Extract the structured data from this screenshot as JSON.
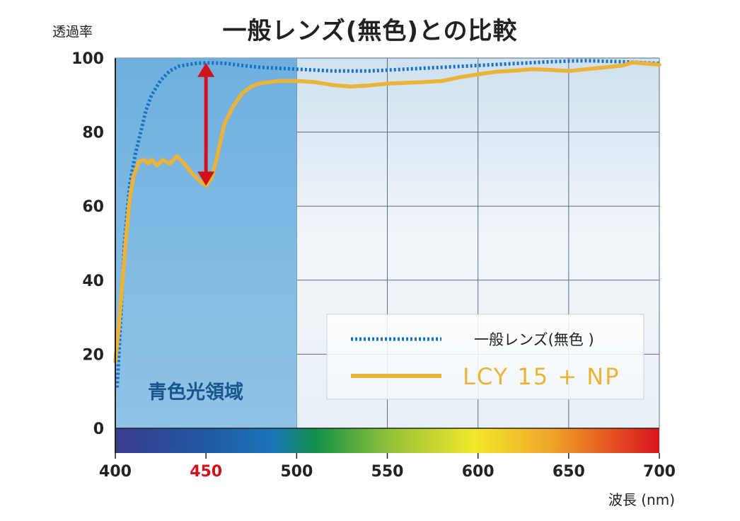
{
  "chart_data": {
    "type": "line",
    "title": "一般レンズ(無色)との比較",
    "ylabel": "透過率",
    "xlabel": "波長 (nm)",
    "xlim": [
      400,
      700
    ],
    "ylim": [
      0,
      100
    ],
    "x_ticks": [
      "400",
      "450",
      "500",
      "550",
      "600",
      "650",
      "700"
    ],
    "y_ticks": [
      "0",
      "20",
      "40",
      "60",
      "80",
      "100"
    ],
    "highlight_tick": "450",
    "highlight_tick_color": "#d0121b",
    "region_label": "青色光領域",
    "region_range": [
      400,
      500
    ],
    "legend_position": "lower-right",
    "series": [
      {
        "name": "一般レンズ(無色 )",
        "style": "dotted",
        "color": "#1a73c2",
        "x": [
          401,
          403,
          405,
          408,
          411,
          414,
          417,
          420,
          425,
          430,
          435,
          440,
          445,
          450,
          460,
          470,
          480,
          500,
          520,
          540,
          560,
          580,
          600,
          620,
          640,
          650,
          660,
          680,
          700
        ],
        "y": [
          11,
          30,
          50,
          66,
          74,
          80,
          86,
          90,
          94,
          96.5,
          97.8,
          98.2,
          98.6,
          98.7,
          98.6,
          98,
          97.5,
          97,
          96.5,
          96.5,
          97,
          97.5,
          98,
          98.5,
          99,
          99.2,
          99.3,
          99,
          98.5
        ]
      },
      {
        "name": "LCY 15 + NP",
        "style": "solid",
        "color": "#ecb339",
        "x": [
          400,
          402,
          404,
          406,
          408,
          410,
          413,
          416,
          418,
          420,
          423,
          426,
          430,
          434,
          438,
          442,
          446,
          450,
          453,
          456,
          460,
          465,
          470,
          475,
          480,
          490,
          500,
          510,
          520,
          530,
          540,
          550,
          560,
          570,
          580,
          590,
          600,
          610,
          620,
          630,
          640,
          650,
          660,
          670,
          680,
          685,
          690,
          700
        ],
        "y": [
          18,
          28,
          40,
          52,
          62,
          68,
          72,
          72.5,
          71.5,
          72.5,
          71,
          72.5,
          71.5,
          73.5,
          71.5,
          69,
          67,
          65.5,
          67.5,
          73,
          82,
          87,
          90.5,
          92.3,
          93.2,
          93.8,
          93.8,
          93.5,
          92.7,
          92.3,
          92.6,
          93.1,
          93.3,
          93.5,
          93.8,
          94.8,
          95.6,
          96.3,
          96.6,
          97,
          96.8,
          96.5,
          97,
          97.5,
          98,
          98.8,
          98.6,
          98.2
        ]
      }
    ],
    "annotation": {
      "type": "double-arrow",
      "x": 450,
      "y_from": 65.5,
      "y_to": 98.7,
      "color": "#d0121b"
    }
  }
}
